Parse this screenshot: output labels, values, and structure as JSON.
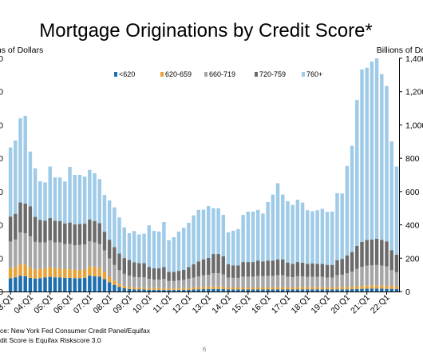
{
  "page_number": "6",
  "chart_data": {
    "type": "bar",
    "stacked": true,
    "title": "Mortgage Originations by Credit Score*",
    "ylabel_left": "Billions of Dollars",
    "ylabel_right": "Billions of Dollars",
    "ylim": [
      0,
      1400
    ],
    "yticks": [
      0,
      200,
      400,
      600,
      800,
      1000,
      1200,
      1400
    ],
    "ytick_labels": [
      "0",
      "200",
      "400",
      "600",
      "800",
      "1,000",
      "1,200",
      "1,400"
    ],
    "grid": false,
    "legend_position": "top-center",
    "colors": {
      "<620": "#1f6fae",
      "620-659": "#e8a23a",
      "660-719": "#a6a6a6",
      "720-759": "#6b6b6b",
      "760+": "#9fcbe8"
    },
    "xtick_labels": [
      "03:Q1",
      "04:Q1",
      "05:Q1",
      "06:Q1",
      "07:Q1",
      "08:Q1",
      "09:Q1",
      "10:Q1",
      "11:Q1",
      "12:Q1",
      "13:Q1",
      "14:Q1",
      "15:Q1",
      "16:Q1",
      "17:Q1",
      "18:Q1",
      "19:Q1",
      "20:Q1",
      "21:Q1",
      "22:Q1"
    ],
    "categories": [
      "03:Q1",
      "03:Q2",
      "03:Q3",
      "03:Q4",
      "04:Q1",
      "04:Q2",
      "04:Q3",
      "04:Q4",
      "05:Q1",
      "05:Q2",
      "05:Q3",
      "05:Q4",
      "06:Q1",
      "06:Q2",
      "06:Q3",
      "06:Q4",
      "07:Q1",
      "07:Q2",
      "07:Q3",
      "07:Q4",
      "08:Q1",
      "08:Q2",
      "08:Q3",
      "08:Q4",
      "09:Q1",
      "09:Q2",
      "09:Q3",
      "09:Q4",
      "10:Q1",
      "10:Q2",
      "10:Q3",
      "10:Q4",
      "11:Q1",
      "11:Q2",
      "11:Q3",
      "11:Q4",
      "12:Q1",
      "12:Q2",
      "12:Q3",
      "12:Q4",
      "13:Q1",
      "13:Q2",
      "13:Q3",
      "13:Q4",
      "14:Q1",
      "14:Q2",
      "14:Q3",
      "14:Q4",
      "15:Q1",
      "15:Q2",
      "15:Q3",
      "15:Q4",
      "16:Q1",
      "16:Q2",
      "16:Q3",
      "16:Q4",
      "17:Q1",
      "17:Q2",
      "17:Q3",
      "17:Q4",
      "18:Q1",
      "18:Q2",
      "18:Q3",
      "18:Q4",
      "19:Q1",
      "19:Q2",
      "19:Q3",
      "19:Q4",
      "20:Q1",
      "20:Q2",
      "20:Q3",
      "20:Q4",
      "21:Q1",
      "21:Q2",
      "21:Q3",
      "21:Q4",
      "22:Q1",
      "22:Q2",
      "22:Q3"
    ],
    "series": [
      {
        "name": "<620",
        "values": [
          80,
          85,
          95,
          92,
          82,
          78,
          80,
          85,
          88,
          85,
          85,
          82,
          82,
          80,
          80,
          82,
          95,
          92,
          90,
          75,
          55,
          40,
          28,
          20,
          15,
          12,
          12,
          12,
          11,
          10,
          10,
          10,
          9,
          9,
          9,
          10,
          11,
          12,
          13,
          14,
          14,
          15,
          15,
          14,
          12,
          12,
          12,
          12,
          12,
          12,
          12,
          12,
          12,
          12,
          13,
          13,
          12,
          12,
          13,
          13,
          13,
          13,
          13,
          13,
          12,
          12,
          13,
          13,
          13,
          14,
          15,
          16,
          17,
          18,
          18,
          17,
          16,
          16,
          15
        ]
      },
      {
        "name": "620-659",
        "values": [
          60,
          62,
          70,
          68,
          60,
          55,
          55,
          55,
          58,
          55,
          55,
          52,
          52,
          50,
          50,
          50,
          55,
          55,
          50,
          42,
          32,
          24,
          18,
          14,
          12,
          11,
          11,
          11,
          10,
          10,
          10,
          10,
          9,
          9,
          9,
          10,
          11,
          12,
          13,
          14,
          14,
          15,
          15,
          14,
          12,
          12,
          12,
          12,
          12,
          12,
          12,
          12,
          12,
          12,
          13,
          13,
          12,
          12,
          13,
          13,
          13,
          13,
          13,
          13,
          12,
          12,
          13,
          13,
          14,
          15,
          16,
          17,
          18,
          19,
          19,
          18,
          17,
          17,
          16
        ]
      },
      {
        "name": "660-719",
        "values": [
          160,
          165,
          190,
          190,
          190,
          165,
          160,
          155,
          160,
          155,
          155,
          150,
          152,
          148,
          150,
          150,
          152,
          148,
          145,
          130,
          112,
          95,
          82,
          72,
          68,
          64,
          62,
          62,
          55,
          52,
          52,
          55,
          45,
          45,
          48,
          50,
          55,
          60,
          65,
          70,
          72,
          80,
          80,
          75,
          60,
          58,
          58,
          65,
          65,
          65,
          70,
          68,
          70,
          70,
          72,
          72,
          65,
          62,
          66,
          65,
          62,
          63,
          62,
          62,
          60,
          60,
          72,
          75,
          82,
          90,
          105,
          115,
          120,
          120,
          122,
          120,
          118,
          95,
          85
        ]
      },
      {
        "name": "720-759",
        "values": [
          150,
          155,
          180,
          178,
          180,
          150,
          135,
          130,
          135,
          130,
          128,
          125,
          128,
          125,
          126,
          125,
          130,
          128,
          125,
          112,
          112,
          108,
          100,
          95,
          95,
          88,
          85,
          85,
          72,
          68,
          68,
          72,
          55,
          55,
          58,
          60,
          70,
          80,
          90,
          95,
          102,
          115,
          115,
          108,
          80,
          75,
          75,
          88,
          88,
          88,
          92,
          88,
          92,
          92,
          95,
          95,
          85,
          80,
          85,
          82,
          78,
          80,
          78,
          78,
          76,
          76,
          90,
          95,
          108,
          118,
          138,
          150,
          155,
          155,
          158,
          155,
          150,
          120,
          105
        ]
      },
      {
        "name": "760+",
        "values": [
          415,
          440,
          505,
          527,
          328,
          292,
          232,
          230,
          309,
          260,
          262,
          251,
          334,
          297,
          294,
          283,
          298,
          287,
          265,
          221,
          236,
          238,
          217,
          184,
          160,
          188,
          173,
          177,
          249,
          224,
          220,
          270,
          190,
          208,
          236,
          253,
          266,
          293,
          309,
          298,
          311,
          275,
          275,
          249,
          191,
          208,
          218,
          283,
          303,
          303,
          304,
          288,
          351,
          396,
          457,
          389,
          368,
          354,
          374,
          361,
          322,
          313,
          322,
          330,
          318,
          320,
          402,
          392,
          537,
          638,
          876,
          1035,
          1034,
          1068,
          1083,
          995,
          933,
          653,
          529
        ]
      }
    ]
  }
}
